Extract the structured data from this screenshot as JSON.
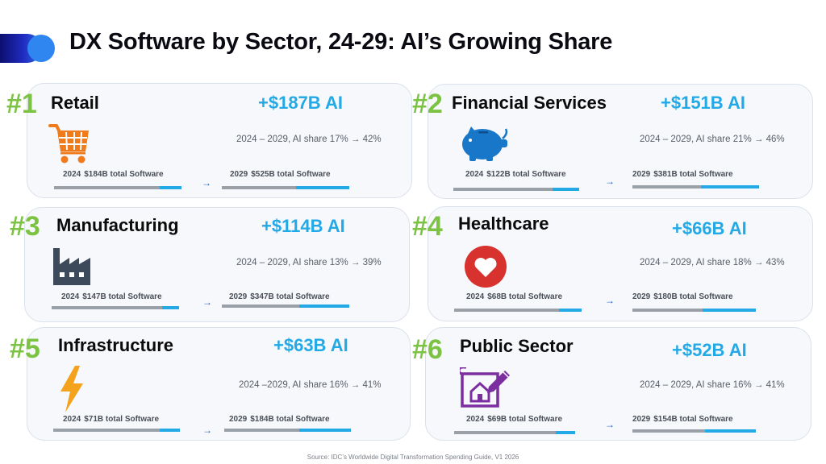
{
  "title": "DX Software by Sector, 24-29: AI’s Growing Share",
  "source": "Source: IDC’s Worldwide Digital Transformation Spending Guide, V1 2026",
  "colors": {
    "accent": "#22a9e6",
    "rank": "#7cc243",
    "bar_grey": "#9aa0a8"
  },
  "chart_data": {
    "type": "bar",
    "title": "DX Software by Sector, 24-29: AI’s Growing Share",
    "unit": "$B",
    "categories": [
      "Retail",
      "Financial Services",
      "Manufacturing",
      "Healthcare",
      "Infrastructure",
      "Public Sector"
    ],
    "series": [
      {
        "name": "2024 total Software",
        "values": [
          184,
          122,
          147,
          68,
          71,
          69
        ]
      },
      {
        "name": "2029 total Software",
        "values": [
          525,
          381,
          347,
          180,
          184,
          154
        ]
      },
      {
        "name": "AI share 2024 (%)",
        "values": [
          17,
          21,
          13,
          18,
          16,
          16
        ]
      },
      {
        "name": "AI share 2029 (%)",
        "values": [
          42,
          46,
          39,
          43,
          41,
          41
        ]
      },
      {
        "name": "AI growth ($B)",
        "values": [
          187,
          151,
          114,
          66,
          63,
          52
        ]
      }
    ]
  },
  "sectors": [
    {
      "rank": "#1",
      "name": "Retail",
      "ai_gain": "+$187B AI",
      "share_text": "2024 – 2029, AI share 17% → 42%",
      "y2024": "2024",
      "label_2024": "$184B total Software",
      "y2029": "2029",
      "label_2029": "$525B total Software",
      "ai_share_2024": 0.17,
      "ai_share_2029": 0.42,
      "icon": "shopping-cart-icon",
      "icon_color": "#f07b1d",
      "arrow": "→"
    },
    {
      "rank": "#2",
      "name": "Financial Services",
      "ai_gain": "+$151B AI",
      "share_text": "2024 – 2029, AI share 21% → 46%",
      "y2024": "2024",
      "label_2024": "$122B total Software",
      "y2029": "2029",
      "label_2029": "$381B total Software",
      "ai_share_2024": 0.21,
      "ai_share_2029": 0.46,
      "icon": "piggy-bank-icon",
      "icon_color": "#1877c9",
      "arrow": "→"
    },
    {
      "rank": "#3",
      "name": "Manufacturing",
      "ai_gain": "+$114B AI",
      "share_text": "2024 – 2029, AI share 13% → 39%",
      "y2024": "2024",
      "label_2024": "$147B total Software",
      "y2029": "2029",
      "label_2029": "$347B total Software",
      "ai_share_2024": 0.13,
      "ai_share_2029": 0.39,
      "icon": "factory-icon",
      "icon_color": "#3c4a5c",
      "arrow": "→"
    },
    {
      "rank": "#4",
      "name": "Healthcare",
      "ai_gain": "+$66B AI",
      "share_text": "2024 – 2029, AI share 18% → 43%",
      "y2024": "2024",
      "label_2024": "$68B total Software",
      "y2029": "2029",
      "label_2029": "$180B total Software",
      "ai_share_2024": 0.18,
      "ai_share_2029": 0.43,
      "icon": "heart-icon",
      "icon_color": "#d8322f",
      "arrow": "→"
    },
    {
      "rank": "#5",
      "name": "Infrastructure",
      "ai_gain": "+$63B AI",
      "share_text": "2024 –2029, AI share 16% → 41%",
      "y2024": "2024",
      "label_2024": "$71B total Software",
      "y2029": "2029",
      "label_2029": "$184B total Software",
      "ai_share_2024": 0.16,
      "ai_share_2029": 0.41,
      "icon": "lightning-bolt-icon",
      "icon_color": "#f4a21c",
      "arrow": "→"
    },
    {
      "rank": "#6",
      "name": "Public Sector",
      "ai_gain": "+$52B AI",
      "share_text": "2024 – 2029, AI share 16% → 41%",
      "y2024": "2024",
      "label_2024": "$69B total Software",
      "y2029": "2029",
      "label_2029": "$154B total Software",
      "ai_share_2024": 0.16,
      "ai_share_2029": 0.41,
      "icon": "blueprint-house-icon",
      "icon_color": "#7b2ea0",
      "arrow": "→"
    }
  ]
}
